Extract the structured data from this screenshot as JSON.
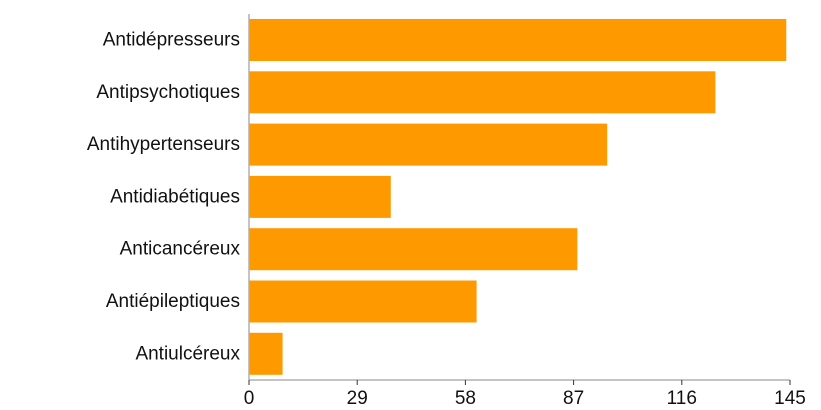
{
  "chart_data": {
    "type": "bar",
    "orientation": "horizontal",
    "categories": [
      "Antidépresseurs",
      "Antipsychotiques",
      "Antihypertenseurs",
      "Antidiabétiques",
      "Anticancéreux",
      "Antiépileptiques",
      "Antiulcéreux"
    ],
    "values": [
      144,
      125,
      96,
      38,
      88,
      61,
      9
    ],
    "xlim": [
      0,
      145
    ],
    "xticks": [
      "0",
      "29",
      "58",
      "87",
      "116",
      "145"
    ],
    "bar_color": "#FF9900",
    "grid": false
  }
}
